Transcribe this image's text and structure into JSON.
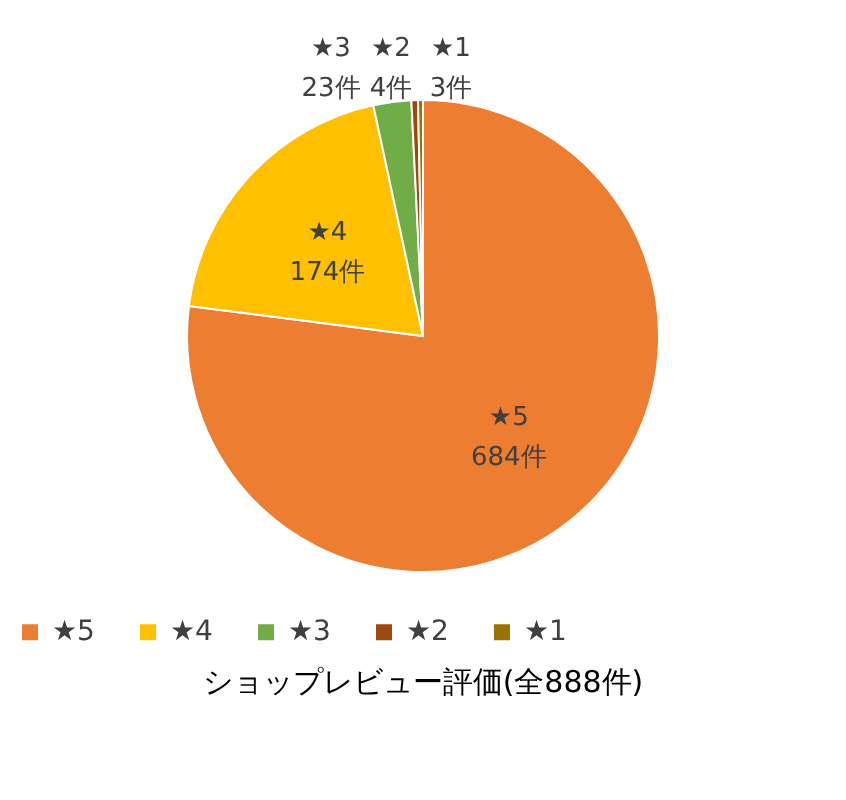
{
  "chart_data": {
    "type": "pie",
    "title": "ショップレビュー評価(全888件)",
    "categories": [
      "★5",
      "★4",
      "★3",
      "★2",
      "★1"
    ],
    "values": [
      684,
      174,
      23,
      4,
      3
    ],
    "value_labels": [
      "684件",
      "174件",
      "23件",
      "4件",
      "3件"
    ],
    "colors": [
      "#ed7d31",
      "#ffc000",
      "#70ad47",
      "#9e480e",
      "#997300"
    ],
    "legend": "bottom"
  }
}
